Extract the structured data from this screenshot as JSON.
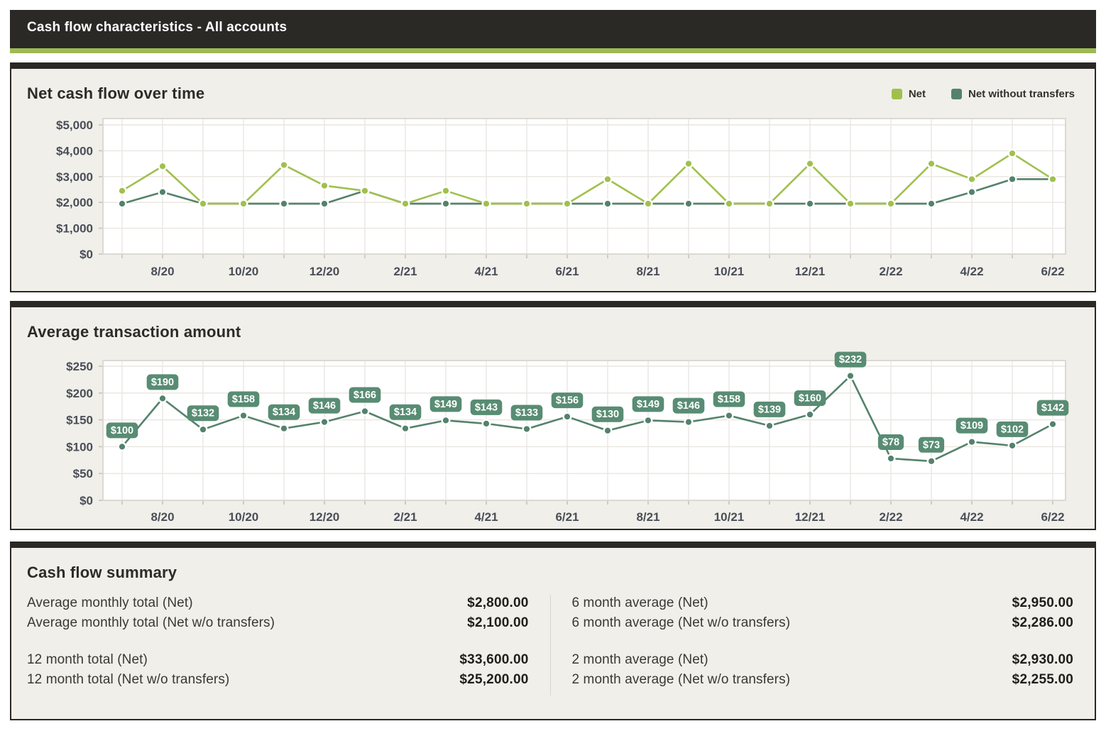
{
  "header": {
    "title": "Cash flow characteristics - All accounts"
  },
  "colors": {
    "dark": "#2a2926",
    "accent_strip": "#9cba55",
    "net_green": "#a0c04e",
    "teal": "#54826c",
    "pill": "#588c73",
    "panel_bg": "#f0efe9",
    "plot_bg": "#ffffff",
    "grid": "#e9e6e0",
    "plot_border": "#dcd9d2",
    "tick": "#c6c3bc",
    "axis_text": "#494e58"
  },
  "chart_data": [
    {
      "type": "line",
      "title": "Net cash flow over time",
      "x": [
        "7/20",
        "8/20",
        "9/20",
        "10/20",
        "11/20",
        "12/20",
        "1/21",
        "2/21",
        "3/21",
        "4/21",
        "5/21",
        "6/21",
        "7/21",
        "8/21",
        "9/21",
        "10/21",
        "11/21",
        "12/21",
        "1/22",
        "2/22",
        "3/22",
        "4/22",
        "5/22",
        "6/22"
      ],
      "x_tick_labels": [
        {
          "index": 1,
          "label": "8/20"
        },
        {
          "index": 3,
          "label": "10/20"
        },
        {
          "index": 5,
          "label": "12/20"
        },
        {
          "index": 7,
          "label": "2/21"
        },
        {
          "index": 9,
          "label": "4/21"
        },
        {
          "index": 11,
          "label": "6/21"
        },
        {
          "index": 13,
          "label": "8/21"
        },
        {
          "index": 15,
          "label": "10/21"
        },
        {
          "index": 17,
          "label": "12/21"
        },
        {
          "index": 19,
          "label": "2/22"
        },
        {
          "index": 21,
          "label": "4/22"
        },
        {
          "index": 23,
          "label": "6/22"
        }
      ],
      "y_ticks": [
        "$0",
        "$1,000",
        "$2,000",
        "$3,000",
        "$4,000",
        "$5,000"
      ],
      "ylim": [
        0,
        5000
      ],
      "grid": true,
      "legend_position": "top-right",
      "series": [
        {
          "name": "Net",
          "color_key": "net_green",
          "values": [
            2450,
            3400,
            1950,
            1950,
            3450,
            2650,
            2450,
            1950,
            2450,
            1950,
            1950,
            1950,
            2900,
            1950,
            3500,
            1950,
            1950,
            3500,
            1950,
            1950,
            3500,
            2900,
            3900,
            2900
          ]
        },
        {
          "name": "Net without transfers",
          "color_key": "teal",
          "values": [
            1950,
            2400,
            1950,
            1950,
            1950,
            1950,
            2450,
            1950,
            1950,
            1950,
            1950,
            1950,
            1950,
            1950,
            1950,
            1950,
            1950,
            1950,
            1950,
            1950,
            1950,
            2400,
            2900,
            2900
          ]
        }
      ]
    },
    {
      "type": "line",
      "title": "Average transaction amount",
      "x": [
        "7/20",
        "8/20",
        "9/20",
        "10/20",
        "11/20",
        "12/20",
        "1/21",
        "2/21",
        "3/21",
        "4/21",
        "5/21",
        "6/21",
        "7/21",
        "8/21",
        "9/21",
        "10/21",
        "11/21",
        "12/21",
        "1/22",
        "2/22",
        "3/22",
        "4/22",
        "5/22",
        "6/22"
      ],
      "x_tick_labels": [
        {
          "index": 1,
          "label": "8/20"
        },
        {
          "index": 3,
          "label": "10/20"
        },
        {
          "index": 5,
          "label": "12/20"
        },
        {
          "index": 7,
          "label": "2/21"
        },
        {
          "index": 9,
          "label": "4/21"
        },
        {
          "index": 11,
          "label": "6/21"
        },
        {
          "index": 13,
          "label": "8/21"
        },
        {
          "index": 15,
          "label": "10/21"
        },
        {
          "index": 17,
          "label": "12/21"
        },
        {
          "index": 19,
          "label": "2/22"
        },
        {
          "index": 21,
          "label": "4/22"
        },
        {
          "index": 23,
          "label": "6/22"
        }
      ],
      "y_ticks": [
        "$0",
        "$50",
        "$100",
        "$150",
        "$200",
        "$250"
      ],
      "ylim": [
        0,
        250
      ],
      "grid": true,
      "series": [
        {
          "name": "Average transaction amount",
          "color_key": "teal",
          "values": [
            100,
            190,
            132,
            158,
            134,
            146,
            166,
            134,
            149,
            143,
            133,
            156,
            130,
            149,
            146,
            158,
            139,
            160,
            232,
            78,
            73,
            109,
            102,
            142
          ],
          "data_labels": [
            "$100",
            "$190",
            "$132",
            "$158",
            "$134",
            "$146",
            "$166",
            "$134",
            "$149",
            "$143",
            "$133",
            "$156",
            "$130",
            "$149",
            "$146",
            "$158",
            "$139",
            "$160",
            "$232",
            "$78",
            "$73",
            "$109",
            "$102",
            "$142"
          ]
        }
      ]
    }
  ],
  "summary": {
    "title": "Cash flow summary",
    "left": [
      {
        "label": "Average monthly total (Net)",
        "value": "$2,800.00"
      },
      {
        "label": "Average monthly total (Net w/o transfers)",
        "value": "$2,100.00"
      },
      {
        "label": "12 month total (Net)",
        "value": "$33,600.00"
      },
      {
        "label": "12 month total (Net w/o transfers)",
        "value": "$25,200.00"
      }
    ],
    "right": [
      {
        "label": "6 month average (Net)",
        "value": "$2,950.00"
      },
      {
        "label": "6 month average (Net w/o transfers)",
        "value": "$2,286.00"
      },
      {
        "label": "2 month average (Net)",
        "value": "$2,930.00"
      },
      {
        "label": "2 month average (Net w/o transfers)",
        "value": "$2,255.00"
      }
    ]
  }
}
